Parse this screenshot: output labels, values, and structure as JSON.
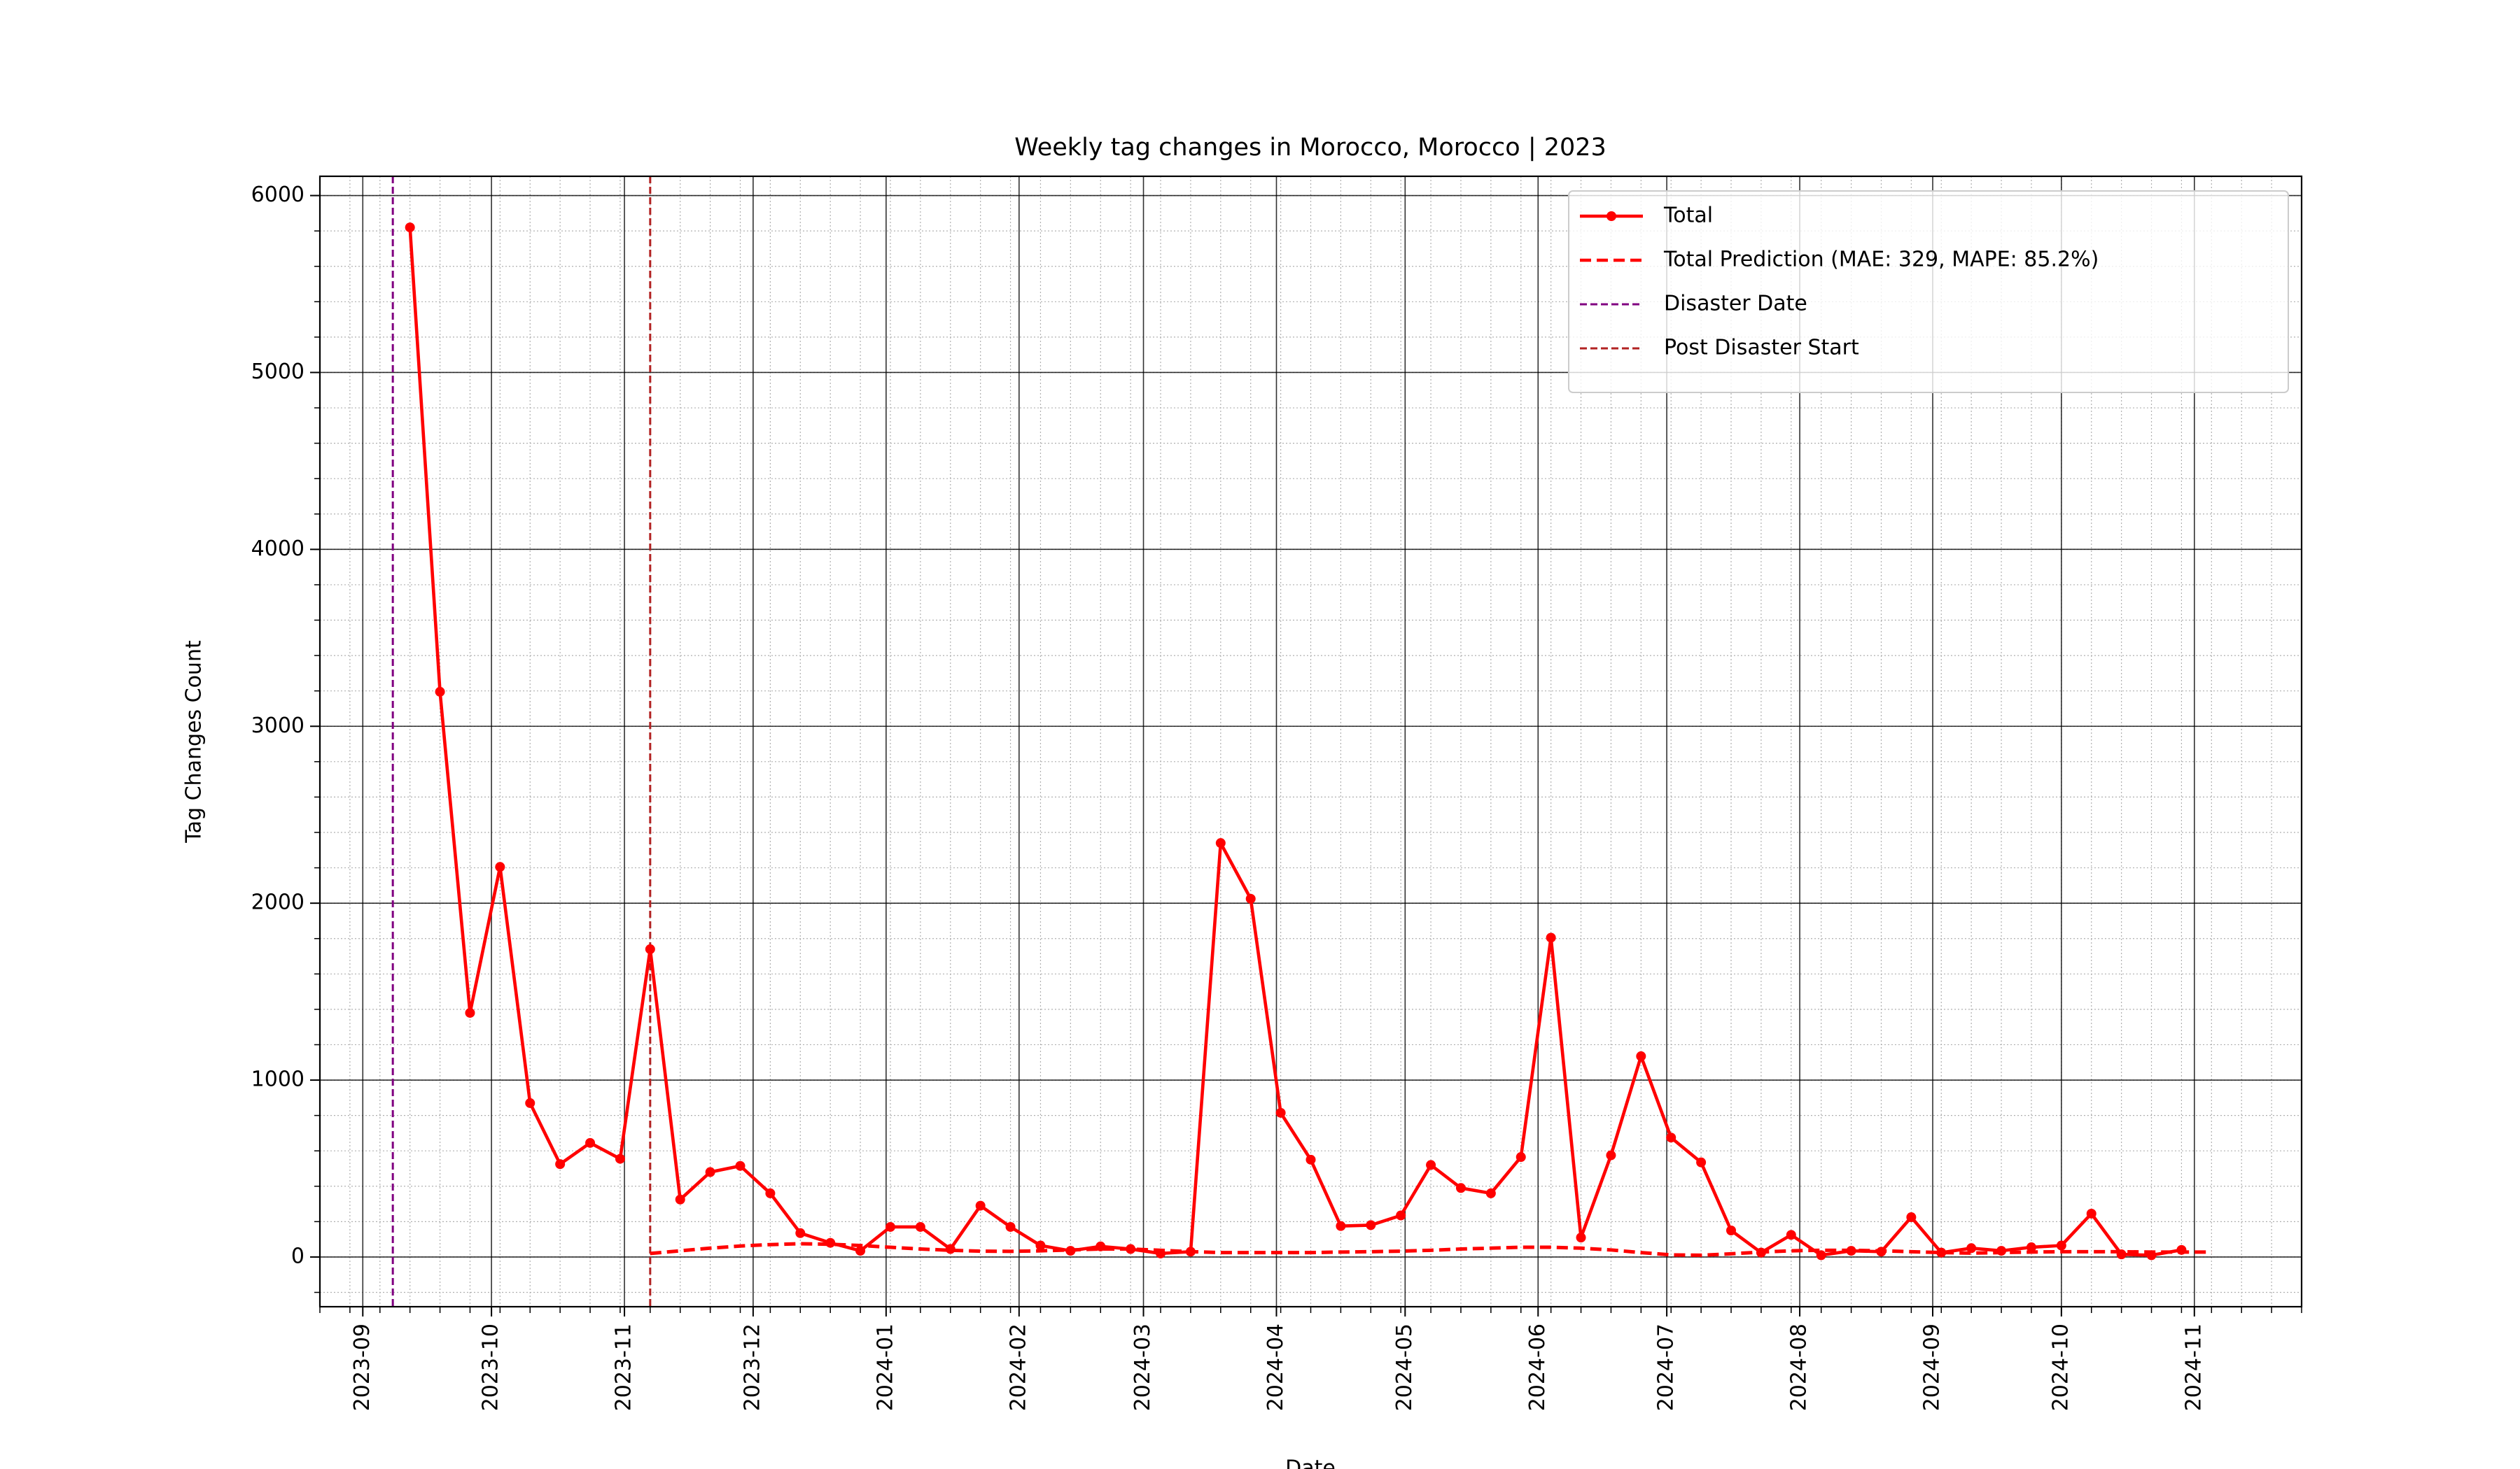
{
  "chart_data": {
    "type": "line",
    "title": "Weekly tag changes in Morocco, Morocco | 2023",
    "xlabel": "Date",
    "ylabel": "Tag Changes Count",
    "x": [
      "2023-09-12",
      "2023-09-19",
      "2023-09-26",
      "2023-10-03",
      "2023-10-10",
      "2023-10-17",
      "2023-10-24",
      "2023-10-31",
      "2023-11-07",
      "2023-11-14",
      "2023-11-21",
      "2023-11-28",
      "2023-12-05",
      "2023-12-12",
      "2023-12-19",
      "2023-12-26",
      "2024-01-02",
      "2024-01-09",
      "2024-01-16",
      "2024-01-23",
      "2024-01-30",
      "2024-02-06",
      "2024-02-13",
      "2024-02-20",
      "2024-02-27",
      "2024-03-05",
      "2024-03-12",
      "2024-03-19",
      "2024-03-26",
      "2024-04-02",
      "2024-04-09",
      "2024-04-16",
      "2024-04-23",
      "2024-04-30",
      "2024-05-07",
      "2024-05-14",
      "2024-05-21",
      "2024-05-28",
      "2024-06-04",
      "2024-06-11",
      "2024-06-18",
      "2024-06-25",
      "2024-07-02",
      "2024-07-09",
      "2024-07-16",
      "2024-07-23",
      "2024-07-30",
      "2024-08-06",
      "2024-08-13",
      "2024-08-20",
      "2024-08-27",
      "2024-09-03",
      "2024-09-10",
      "2024-09-17",
      "2024-09-24",
      "2024-10-01",
      "2024-10-08",
      "2024-10-15",
      "2024-10-22",
      "2024-10-29",
      "2024-11-05"
    ],
    "series": [
      {
        "name": "Total",
        "color": "#ff0000",
        "style": "solid",
        "marker": true,
        "values": [
          5820,
          3195,
          1380,
          2205,
          870,
          525,
          645,
          555,
          1740,
          325,
          480,
          515,
          360,
          135,
          80,
          35,
          170,
          170,
          45,
          290,
          170,
          65,
          35,
          60,
          45,
          20,
          30,
          2340,
          2025,
          815,
          550,
          175,
          180,
          235,
          520,
          390,
          360,
          565,
          1805,
          110,
          575,
          1135,
          675,
          535,
          150,
          25,
          125,
          10,
          35,
          30,
          225,
          25,
          50,
          35,
          55,
          65,
          245,
          15,
          10,
          40,
          null
        ]
      },
      {
        "name": "Total Prediction (MAE: 329, MAPE: 85.2%)",
        "color": "#ff0000",
        "style": "dashed",
        "marker": false,
        "values": [
          null,
          null,
          null,
          null,
          null,
          null,
          null,
          null,
          20,
          35,
          50,
          62,
          70,
          75,
          72,
          65,
          55,
          45,
          38,
          33,
          32,
          35,
          40,
          45,
          45,
          38,
          30,
          25,
          25,
          25,
          25,
          28,
          30,
          33,
          38,
          45,
          50,
          55,
          55,
          50,
          40,
          25,
          12,
          10,
          18,
          28,
          35,
          38,
          38,
          35,
          30,
          25,
          22,
          25,
          28,
          30,
          30,
          30,
          28,
          28,
          28
        ]
      }
    ],
    "vlines": [
      {
        "name": "Disaster Date",
        "x": "2023-09-08",
        "color": "#800080"
      },
      {
        "name": "Post Disaster Start",
        "x": "2023-11-07",
        "color": "#b22222"
      }
    ],
    "xlim": [
      "2023-08-22",
      "2024-11-26"
    ],
    "xticks": [
      "2023-09",
      "2023-10",
      "2023-11",
      "2023-12",
      "2024-01",
      "2024-02",
      "2024-03",
      "2024-04",
      "2024-05",
      "2024-06",
      "2024-07",
      "2024-08",
      "2024-09",
      "2024-10",
      "2024-11"
    ],
    "ylim": [
      -281,
      6109
    ],
    "yticks": [
      0,
      1000,
      2000,
      3000,
      4000,
      5000,
      6000
    ],
    "grid": true,
    "legend": "upper right"
  }
}
